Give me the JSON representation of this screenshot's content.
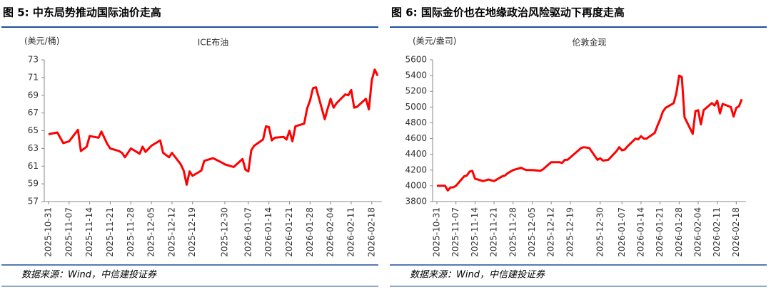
{
  "chart_data": [
    {
      "type": "line",
      "title": "图 5: 中东局势推动国际油价走高",
      "y_label": "(美元/桶)",
      "source": "数据来源：Wind，中信建投证券",
      "x": [
        "2025-10-31",
        "2025-11-03",
        "2025-11-05",
        "2025-11-07",
        "2025-11-10",
        "2025-11-11",
        "2025-11-13",
        "2025-11-14",
        "2025-11-17",
        "2025-11-18",
        "2025-11-20",
        "2025-11-21",
        "2025-11-24",
        "2025-11-25",
        "2025-11-26",
        "2025-11-28",
        "2025-12-01",
        "2025-12-02",
        "2025-12-03",
        "2025-12-05",
        "2025-12-08",
        "2025-12-09",
        "2025-12-11",
        "2025-12-12",
        "2025-12-15",
        "2025-12-16",
        "2025-12-17",
        "2025-12-18",
        "2025-12-19",
        "2025-12-22",
        "2025-12-23",
        "2025-12-26",
        "2025-12-29",
        "2025-12-30",
        "2025-12-31",
        "2026-01-02",
        "2026-01-05",
        "2026-01-06",
        "2026-01-07",
        "2026-01-08",
        "2026-01-09",
        "2026-01-12",
        "2026-01-13",
        "2026-01-14",
        "2026-01-15",
        "2026-01-16",
        "2026-01-19",
        "2026-01-20",
        "2026-01-21",
        "2026-01-22",
        "2026-01-23",
        "2026-01-26",
        "2026-01-27",
        "2026-01-28",
        "2026-01-29",
        "2026-01-30",
        "2026-02-02",
        "2026-02-03",
        "2026-02-04",
        "2026-02-05",
        "2026-02-06",
        "2026-02-09",
        "2026-02-10",
        "2026-02-11",
        "2026-02-12",
        "2026-02-13",
        "2026-02-16",
        "2026-02-17",
        "2026-02-18",
        "2026-02-19",
        "2026-02-20"
      ],
      "series": [
        {
          "name": "ICE布油",
          "color": "#ff0000",
          "values": [
            64.6,
            64.8,
            63.6,
            63.8,
            65.1,
            62.7,
            63.2,
            64.4,
            64.2,
            64.9,
            63.5,
            63.0,
            62.7,
            62.5,
            62.0,
            63.0,
            62.4,
            63.2,
            62.6,
            63.3,
            63.9,
            62.5,
            62.0,
            62.5,
            61.2,
            60.5,
            58.9,
            60.4,
            59.9,
            60.5,
            61.6,
            61.9,
            61.4,
            61.2,
            61.1,
            60.9,
            61.8,
            60.6,
            60.4,
            62.8,
            63.3,
            64.0,
            65.5,
            65.4,
            63.9,
            64.2,
            64.3,
            64.0,
            65.0,
            63.8,
            65.5,
            65.8,
            67.5,
            68.4,
            69.8,
            69.9,
            66.3,
            67.5,
            68.6,
            67.6,
            68.1,
            69.1,
            69.0,
            69.6,
            67.6,
            67.7,
            68.6,
            67.4,
            70.7,
            71.9,
            71.2
          ]
        }
      ],
      "ylim": [
        57,
        73
      ],
      "yticks": [
        57,
        59,
        61,
        63,
        65,
        67,
        69,
        71,
        73
      ],
      "xticks": [
        "2025-10-31",
        "2025-11-07",
        "2025-11-14",
        "2025-11-21",
        "2025-11-28",
        "2025-12-05",
        "2025-12-12",
        "2025-12-19",
        "2025-12-30",
        "2026-01-07",
        "2026-01-14",
        "2026-01-21",
        "2026-01-28",
        "2026-02-04",
        "2026-02-11",
        "2026-02-18"
      ],
      "grid": false
    },
    {
      "type": "line",
      "title": "图 6: 国际金价也在地缘政治风险驱动下再度走高",
      "y_label": "(美元/盎司)",
      "source": "数据来源：Wind，中信建投证券",
      "x": [
        "2025-10-31",
        "2025-11-03",
        "2025-11-04",
        "2025-11-05",
        "2025-11-06",
        "2025-11-07",
        "2025-11-10",
        "2025-11-11",
        "2025-11-12",
        "2025-11-13",
        "2025-11-14",
        "2025-11-17",
        "2025-11-18",
        "2025-11-19",
        "2025-11-20",
        "2025-11-21",
        "2025-11-24",
        "2025-11-25",
        "2025-11-26",
        "2025-11-28",
        "2025-12-01",
        "2025-12-02",
        "2025-12-03",
        "2025-12-05",
        "2025-12-08",
        "2025-12-09",
        "2025-12-11",
        "2025-12-12",
        "2025-12-15",
        "2025-12-16",
        "2025-12-17",
        "2025-12-18",
        "2025-12-19",
        "2025-12-22",
        "2025-12-23",
        "2025-12-24",
        "2025-12-26",
        "2025-12-29",
        "2025-12-30",
        "2025-12-31",
        "2026-01-02",
        "2026-01-05",
        "2026-01-06",
        "2026-01-07",
        "2026-01-08",
        "2026-01-09",
        "2026-01-12",
        "2026-01-13",
        "2026-01-14",
        "2026-01-15",
        "2026-01-16",
        "2026-01-19",
        "2026-01-20",
        "2026-01-21",
        "2026-01-22",
        "2026-01-23",
        "2026-01-26",
        "2026-01-27",
        "2026-01-28",
        "2026-01-29",
        "2026-01-30",
        "2026-02-02",
        "2026-02-03",
        "2026-02-04",
        "2026-02-05",
        "2026-02-06",
        "2026-02-09",
        "2026-02-10",
        "2026-02-11",
        "2026-02-12",
        "2026-02-13",
        "2026-02-16",
        "2026-02-17",
        "2026-02-18",
        "2026-02-19",
        "2026-02-20"
      ],
      "series": [
        {
          "name": "伦敦金现",
          "color": "#ff0000",
          "values": [
            4000,
            4000,
            3940,
            3980,
            3980,
            4000,
            4120,
            4130,
            4180,
            4190,
            4090,
            4060,
            4070,
            4080,
            4070,
            4060,
            4120,
            4130,
            4160,
            4200,
            4230,
            4210,
            4200,
            4200,
            4190,
            4210,
            4270,
            4300,
            4300,
            4290,
            4330,
            4330,
            4360,
            4450,
            4480,
            4490,
            4480,
            4330,
            4350,
            4320,
            4330,
            4440,
            4490,
            4450,
            4460,
            4500,
            4600,
            4590,
            4630,
            4600,
            4600,
            4670,
            4760,
            4840,
            4940,
            4990,
            5050,
            5180,
            5400,
            5380,
            4870,
            4660,
            4950,
            4960,
            4780,
            4960,
            5050,
            5020,
            5080,
            4920,
            5040,
            5000,
            4880,
            4990,
            5010,
            5100
          ]
        }
      ],
      "ylim": [
        3800,
        5600
      ],
      "yticks": [
        3800,
        4000,
        4200,
        4400,
        4600,
        4800,
        5000,
        5200,
        5400,
        5600
      ],
      "xticks": [
        "2025-10-31",
        "2025-11-07",
        "2025-11-14",
        "2025-11-21",
        "2025-11-28",
        "2025-12-05",
        "2025-12-12",
        "2025-12-19",
        "2025-12-30",
        "2026-01-07",
        "2026-01-14",
        "2026-01-21",
        "2026-01-28",
        "2026-02-04",
        "2026-02-11",
        "2026-02-18"
      ],
      "grid": false
    }
  ]
}
